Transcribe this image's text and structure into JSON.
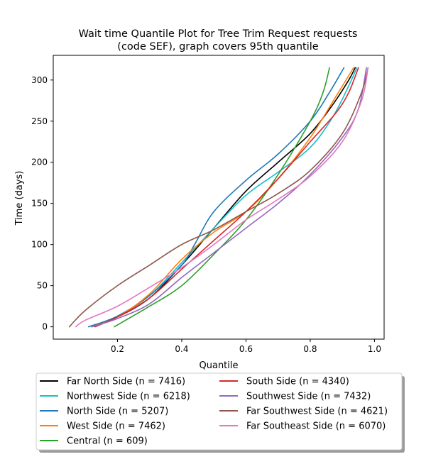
{
  "chart_data": {
    "type": "line",
    "title": "Wait time Quantile Plot for Tree Trim Request  requests\n(code SEF), graph covers 95th quantile",
    "title_lines": [
      "Wait time Quantile Plot for Tree Trim Request  requests",
      "(code SEF), graph covers 95th quantile"
    ],
    "xlabel": "Quantile",
    "ylabel": "Time (days)",
    "xlim": [
      0.0,
      1.03
    ],
    "ylim": [
      -15,
      330
    ],
    "xticks": [
      0.2,
      0.4,
      0.6,
      0.8,
      1.0
    ],
    "xtick_labels": [
      "0.2",
      "0.4",
      "0.6",
      "0.8",
      "1.0"
    ],
    "yticks": [
      0,
      50,
      100,
      150,
      200,
      250,
      300
    ],
    "ytick_labels": [
      "0",
      "50",
      "100",
      "150",
      "200",
      "250",
      "300"
    ],
    "grid": false,
    "legend_position": "bottom, outside plot, two columns",
    "series": [
      {
        "name": "Far North Side (n = 7416)",
        "color": "#000000",
        "points": [
          [
            0.12,
            0
          ],
          [
            0.2,
            12
          ],
          [
            0.3,
            35
          ],
          [
            0.4,
            75
          ],
          [
            0.5,
            120
          ],
          [
            0.6,
            165
          ],
          [
            0.7,
            200
          ],
          [
            0.8,
            235
          ],
          [
            0.87,
            270
          ],
          [
            0.92,
            300
          ],
          [
            0.94,
            315
          ]
        ]
      },
      {
        "name": "Northwest Side (n = 6218)",
        "color": "#17becf",
        "points": [
          [
            0.12,
            0
          ],
          [
            0.2,
            13
          ],
          [
            0.3,
            38
          ],
          [
            0.4,
            78
          ],
          [
            0.5,
            120
          ],
          [
            0.6,
            160
          ],
          [
            0.7,
            188
          ],
          [
            0.8,
            218
          ],
          [
            0.87,
            255
          ],
          [
            0.92,
            293
          ],
          [
            0.945,
            315
          ]
        ]
      },
      {
        "name": "North Side (n = 5207)",
        "color": "#1f77b4",
        "points": [
          [
            0.11,
            0
          ],
          [
            0.2,
            13
          ],
          [
            0.3,
            38
          ],
          [
            0.4,
            75
          ],
          [
            0.44,
            100
          ],
          [
            0.5,
            140
          ],
          [
            0.6,
            178
          ],
          [
            0.7,
            210
          ],
          [
            0.8,
            250
          ],
          [
            0.86,
            285
          ],
          [
            0.905,
            315
          ]
        ]
      },
      {
        "name": "West Side (n = 7462)",
        "color": "#ff7f0e",
        "points": [
          [
            0.12,
            0
          ],
          [
            0.2,
            12
          ],
          [
            0.3,
            40
          ],
          [
            0.4,
            82
          ],
          [
            0.5,
            115
          ],
          [
            0.6,
            140
          ],
          [
            0.7,
            180
          ],
          [
            0.8,
            230
          ],
          [
            0.88,
            280
          ],
          [
            0.935,
            315
          ]
        ]
      },
      {
        "name": "Central (n = 609)",
        "color": "#2ca02c",
        "points": [
          [
            0.19,
            0
          ],
          [
            0.3,
            25
          ],
          [
            0.4,
            50
          ],
          [
            0.5,
            88
          ],
          [
            0.6,
            130
          ],
          [
            0.7,
            185
          ],
          [
            0.8,
            250
          ],
          [
            0.84,
            285
          ],
          [
            0.86,
            315
          ]
        ]
      },
      {
        "name": "South Side (n = 4340)",
        "color": "#d62728",
        "points": [
          [
            0.13,
            0
          ],
          [
            0.2,
            12
          ],
          [
            0.3,
            35
          ],
          [
            0.4,
            70
          ],
          [
            0.5,
            105
          ],
          [
            0.6,
            140
          ],
          [
            0.7,
            180
          ],
          [
            0.8,
            225
          ],
          [
            0.88,
            260
          ],
          [
            0.92,
            285
          ],
          [
            0.95,
            315
          ]
        ]
      },
      {
        "name": "Southwest Side (n = 7432)",
        "color": "#9467bd",
        "points": [
          [
            0.12,
            0
          ],
          [
            0.2,
            10
          ],
          [
            0.3,
            28
          ],
          [
            0.4,
            60
          ],
          [
            0.5,
            90
          ],
          [
            0.6,
            120
          ],
          [
            0.7,
            150
          ],
          [
            0.8,
            185
          ],
          [
            0.9,
            230
          ],
          [
            0.95,
            265
          ],
          [
            0.975,
            315
          ]
        ]
      },
      {
        "name": "Far Southwest Side (n = 4621)",
        "color": "#8c564b",
        "points": [
          [
            0.05,
            0
          ],
          [
            0.1,
            20
          ],
          [
            0.2,
            50
          ],
          [
            0.3,
            75
          ],
          [
            0.4,
            100
          ],
          [
            0.5,
            118
          ],
          [
            0.6,
            140
          ],
          [
            0.7,
            162
          ],
          [
            0.8,
            190
          ],
          [
            0.9,
            235
          ],
          [
            0.96,
            285
          ],
          [
            0.98,
            315
          ]
        ]
      },
      {
        "name": "Far Southeast Side (n = 6070)",
        "color": "#e377c2",
        "points": [
          [
            0.07,
            0
          ],
          [
            0.1,
            8
          ],
          [
            0.2,
            25
          ],
          [
            0.3,
            48
          ],
          [
            0.4,
            72
          ],
          [
            0.5,
            100
          ],
          [
            0.6,
            130
          ],
          [
            0.7,
            155
          ],
          [
            0.8,
            183
          ],
          [
            0.9,
            225
          ],
          [
            0.96,
            275
          ],
          [
            0.98,
            315
          ]
        ]
      }
    ]
  }
}
